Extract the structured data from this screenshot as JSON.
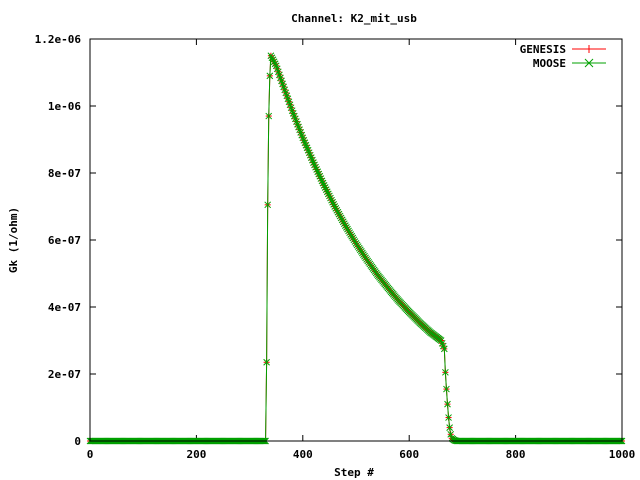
{
  "chart_data": {
    "type": "line",
    "title": "Channel: K2_mit_usb",
    "xlabel": "Step #",
    "ylabel": "Gk (1/ohm)",
    "xlim": [
      0,
      1000
    ],
    "ylim": [
      0,
      1.2e-06
    ],
    "x_ticks": [
      0,
      200,
      400,
      600,
      800,
      1000
    ],
    "x_tick_labels": [
      "0",
      "200",
      "400",
      "600",
      "800",
      "1000"
    ],
    "y_ticks": [
      0,
      2e-07,
      4e-07,
      6e-07,
      8e-07,
      1e-06,
      1.2e-06
    ],
    "y_tick_labels": [
      "0",
      "2e-07",
      "4e-07",
      "6e-07",
      "8e-07",
      "1e-06",
      "1.2e-06"
    ],
    "grid": false,
    "legend_position": "top-right",
    "series": [
      {
        "name": "GENESIS",
        "color": "#ff0000",
        "marker": "plus",
        "x": [
          0,
          100,
          200,
          300,
          330,
          332,
          334,
          336,
          338,
          340,
          350,
          360,
          380,
          400,
          420,
          440,
          460,
          480,
          500,
          520,
          540,
          560,
          580,
          600,
          620,
          640,
          660,
          666,
          668,
          670,
          672,
          674,
          676,
          678,
          680,
          685,
          690,
          700,
          800,
          900,
          1000
        ],
        "y": [
          0,
          0,
          0,
          0,
          0,
          2.35e-07,
          7.05e-07,
          9.7e-07,
          1.09e-06,
          1.15e-06,
          1.12e-06,
          1.075e-06,
          9.86e-07,
          9.05e-07,
          8.31e-07,
          7.63e-07,
          7e-07,
          6.43e-07,
          5.9e-07,
          5.42e-07,
          4.97e-07,
          4.57e-07,
          4.19e-07,
          3.85e-07,
          3.53e-07,
          3.24e-07,
          3e-07,
          2.75e-07,
          2.05e-07,
          1.55e-07,
          1.1e-07,
          7e-08,
          4e-08,
          2e-08,
          8e-09,
          2e-09,
          0,
          0,
          0,
          0,
          0
        ]
      },
      {
        "name": "MOOSE",
        "color": "#00a000",
        "marker": "cross",
        "x": [
          0,
          100,
          200,
          300,
          330,
          332,
          334,
          336,
          338,
          340,
          350,
          360,
          380,
          400,
          420,
          440,
          460,
          480,
          500,
          520,
          540,
          560,
          580,
          600,
          620,
          640,
          660,
          666,
          668,
          670,
          672,
          674,
          676,
          678,
          680,
          685,
          690,
          700,
          800,
          900,
          1000
        ],
        "y": [
          0,
          0,
          0,
          0,
          0,
          2.35e-07,
          7.05e-07,
          9.7e-07,
          1.09e-06,
          1.15e-06,
          1.12e-06,
          1.075e-06,
          9.86e-07,
          9.05e-07,
          8.31e-07,
          7.63e-07,
          7e-07,
          6.43e-07,
          5.9e-07,
          5.42e-07,
          4.97e-07,
          4.57e-07,
          4.19e-07,
          3.85e-07,
          3.53e-07,
          3.24e-07,
          3e-07,
          2.75e-07,
          2.05e-07,
          1.55e-07,
          1.1e-07,
          7e-08,
          4e-08,
          2e-08,
          8e-09,
          2e-09,
          0,
          0,
          0,
          0,
          0
        ]
      }
    ]
  }
}
